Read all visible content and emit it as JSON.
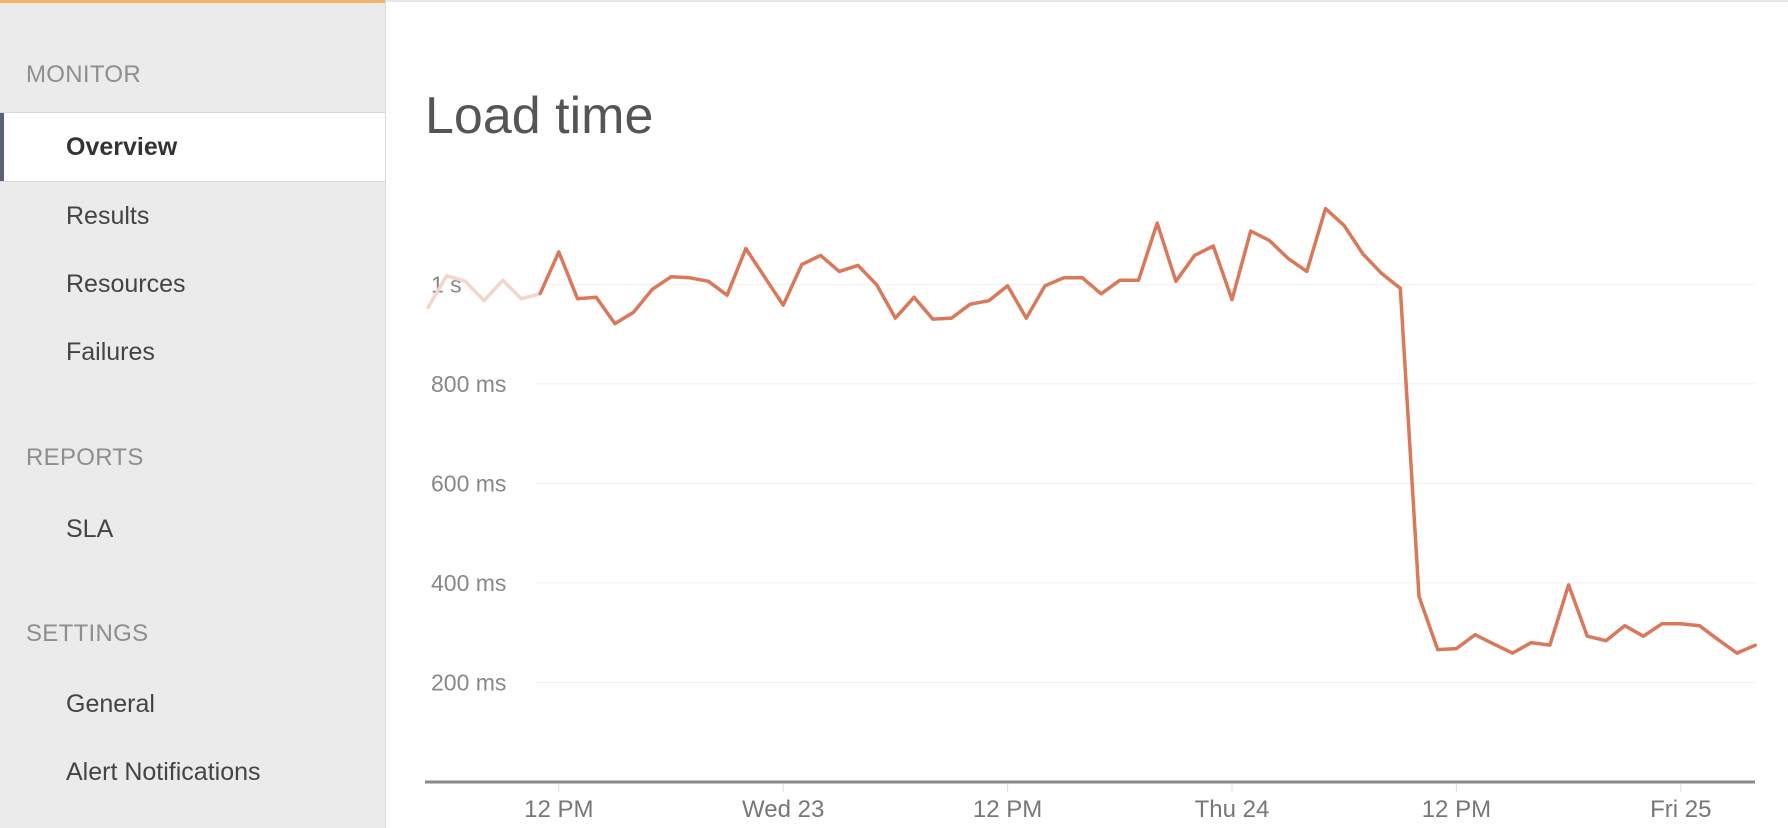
{
  "sidebar": {
    "sections": [
      {
        "label": "MONITOR",
        "items": [
          {
            "label": "Overview",
            "active": true
          },
          {
            "label": "Results"
          },
          {
            "label": "Resources"
          },
          {
            "label": "Failures"
          }
        ]
      },
      {
        "label": "REPORTS",
        "items": [
          {
            "label": "SLA"
          }
        ]
      },
      {
        "label": "SETTINGS",
        "items": [
          {
            "label": "General"
          },
          {
            "label": "Alert Notifications"
          }
        ]
      }
    ]
  },
  "main": {
    "title": "Load time"
  },
  "colors": {
    "accent_top": "#f0b36b",
    "line": "#d9785a",
    "line_faded": "#f3d5c9",
    "active_indicator": "#5a6275"
  },
  "chart_data": {
    "type": "line",
    "title": "Load time",
    "ylabel": "",
    "xlabel": "",
    "y_unit": "ms",
    "ylim": [
      0,
      1200
    ],
    "y_ticks": [
      {
        "value": 200,
        "label": "200 ms"
      },
      {
        "value": 400,
        "label": "400 ms"
      },
      {
        "value": 600,
        "label": "600 ms"
      },
      {
        "value": 800,
        "label": "800 ms"
      },
      {
        "value": 1000,
        "label": "1 s"
      }
    ],
    "x_ticks": [
      {
        "value": "Tue 22 12:00",
        "label": "12 PM"
      },
      {
        "value": "Wed 23 00:00",
        "label": "Wed 23"
      },
      {
        "value": "Wed 23 12:00",
        "label": "12 PM"
      },
      {
        "value": "Thu 24 00:00",
        "label": "Thu 24"
      },
      {
        "value": "Thu 24 12:00",
        "label": "12 PM"
      },
      {
        "value": "Fri 25 00:00",
        "label": "Fri 25"
      }
    ],
    "grid": true,
    "faded_until": "Tue 22 11:00",
    "x": [
      "Tue 22 05:00",
      "Tue 22 06:00",
      "Tue 22 07:00",
      "Tue 22 08:00",
      "Tue 22 09:00",
      "Tue 22 10:00",
      "Tue 22 11:00",
      "Tue 22 12:00",
      "Tue 22 13:00",
      "Tue 22 14:00",
      "Tue 22 15:00",
      "Tue 22 16:00",
      "Tue 22 17:00",
      "Tue 22 18:00",
      "Tue 22 19:00",
      "Tue 22 20:00",
      "Tue 22 21:00",
      "Tue 22 22:00",
      "Tue 22 23:00",
      "Wed 23 00:00",
      "Wed 23 01:00",
      "Wed 23 02:00",
      "Wed 23 03:00",
      "Wed 23 04:00",
      "Wed 23 05:00",
      "Wed 23 06:00",
      "Wed 23 07:00",
      "Wed 23 08:00",
      "Wed 23 09:00",
      "Wed 23 10:00",
      "Wed 23 11:00",
      "Wed 23 12:00",
      "Wed 23 13:00",
      "Wed 23 14:00",
      "Wed 23 15:00",
      "Wed 23 16:00",
      "Wed 23 17:00",
      "Wed 23 18:00",
      "Wed 23 19:00",
      "Wed 23 20:00",
      "Wed 23 21:00",
      "Wed 23 22:00",
      "Wed 23 23:00",
      "Thu 24 00:00",
      "Thu 24 01:00",
      "Thu 24 02:00",
      "Thu 24 03:00",
      "Thu 24 04:00",
      "Thu 24 05:00",
      "Thu 24 06:00",
      "Thu 24 07:00",
      "Thu 24 08:00",
      "Thu 24 09:00",
      "Thu 24 10:00",
      "Thu 24 11:00",
      "Thu 24 12:00",
      "Thu 24 13:00",
      "Thu 24 14:00",
      "Thu 24 15:00",
      "Thu 24 16:00",
      "Thu 24 17:00",
      "Thu 24 18:00",
      "Thu 24 19:00",
      "Thu 24 20:00",
      "Thu 24 21:00",
      "Thu 24 22:00",
      "Thu 24 23:00",
      "Fri 25 00:00",
      "Fri 25 01:00",
      "Fri 25 02:00",
      "Fri 25 03:00",
      "Fri 25 04:00"
    ],
    "series": [
      {
        "values": [
          953,
          1017,
          1006,
          967,
          1008,
          971,
          981,
          1065,
          971,
          974,
          921,
          944,
          990,
          1015,
          1013,
          1006,
          978,
          1072,
          1015,
          958,
          1040,
          1058,
          1026,
          1038,
          999,
          932,
          974,
          930,
          932,
          960,
          967,
          997,
          932,
          997,
          1013,
          1013,
          981,
          1008,
          1008,
          1123,
          1006,
          1058,
          1077,
          969,
          1107,
          1088,
          1052,
          1026,
          1152,
          1118,
          1061,
          1022,
          992,
          373,
          266,
          268,
          296,
          277,
          259,
          280,
          275,
          396,
          293,
          284,
          314,
          293,
          318,
          318,
          314,
          286,
          259,
          275
        ]
      }
    ]
  }
}
